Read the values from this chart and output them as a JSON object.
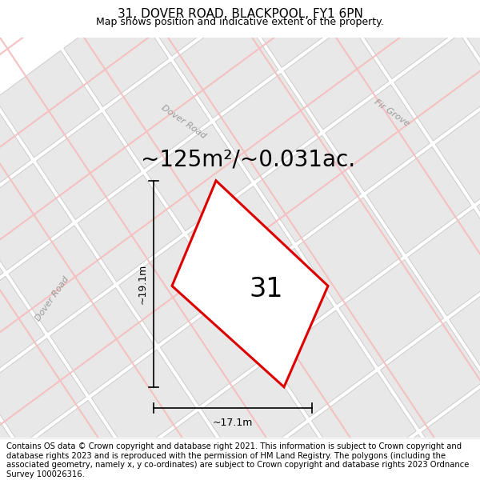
{
  "title": "31, DOVER ROAD, BLACKPOOL, FY1 6PN",
  "subtitle": "Map shows position and indicative extent of the property.",
  "area_text": "~125m²/~0.031ac.",
  "number_label": "31",
  "dim_width": "~17.1m",
  "dim_height": "~19.1m",
  "road_label_dover_upper": "Dover Road",
  "road_label_fir": "Fir Grove",
  "road_label_dover_left": "Dover Road",
  "copyright_text": "Contains OS data © Crown copyright and database right 2021. This information is subject to Crown copyright and database rights 2023 and is reproduced with the permission of HM Land Registry. The polygons (including the associated geometry, namely x, y co-ordinates) are subject to Crown copyright and database rights 2023 Ordnance Survey 100026316.",
  "map_bg": "#f5f5f5",
  "plot_edge_color": "#dd0000",
  "plot_fill_color": "#f5f5f5",
  "road_line_color": "#f5c0c0",
  "parcel_fill_color": "#e8e8e8",
  "parcel_edge_color": "#cccccc",
  "title_fontsize": 11,
  "subtitle_fontsize": 9,
  "area_fontsize": 20,
  "number_fontsize": 24,
  "dim_fontsize": 9,
  "road_label_fontsize": 8,
  "copyright_fontsize": 7.2
}
